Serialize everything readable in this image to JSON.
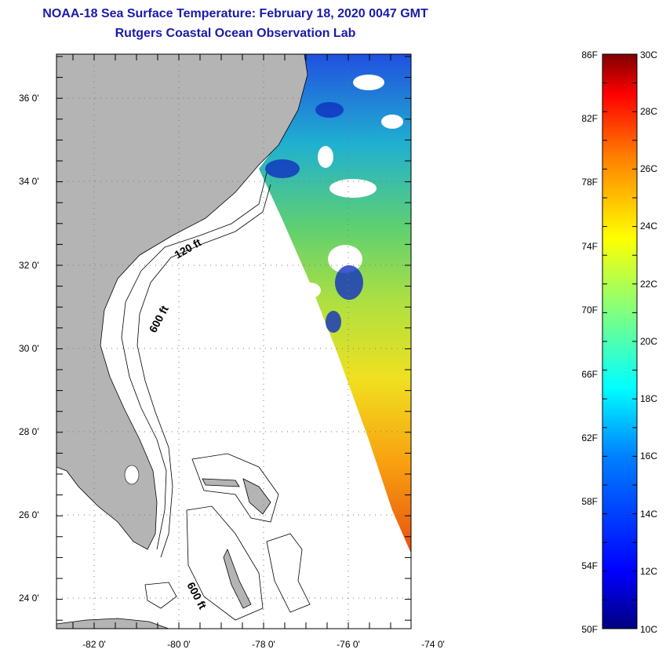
{
  "title": "NOAA-18 Sea Surface Temperature:  February 18, 2020 0047 GMT",
  "subtitle": "Rutgers Coastal Ocean Observation Lab",
  "map": {
    "lat_labels": [
      "36 0'",
      "34 0'",
      "32 0'",
      "30 0'",
      "28 0'",
      "26 0'",
      "24 0'"
    ],
    "lon_labels": [
      "-82 0'",
      "-80 0'",
      "-78 0'",
      "-76 0'",
      "-74 0'"
    ],
    "contour_labels": [
      "120 ft",
      "600 ft",
      "600 ft"
    ],
    "land_color": "#b4b4b4",
    "ocean_color": "#ffffff"
  },
  "colorbar": {
    "fahrenheit_labels": [
      "86F",
      "82F",
      "78F",
      "74F",
      "70F",
      "66F",
      "62F",
      "58F",
      "54F",
      "50F"
    ],
    "celsius_labels": [
      "30C",
      "28C",
      "26C",
      "24C",
      "22C",
      "20C",
      "18C",
      "16C",
      "14C",
      "12C",
      "10C"
    ],
    "colors": [
      "#000080",
      "#0000ff",
      "#0080ff",
      "#00ffff",
      "#80ff80",
      "#ffff00",
      "#ff8000",
      "#ff0000",
      "#800000"
    ]
  }
}
